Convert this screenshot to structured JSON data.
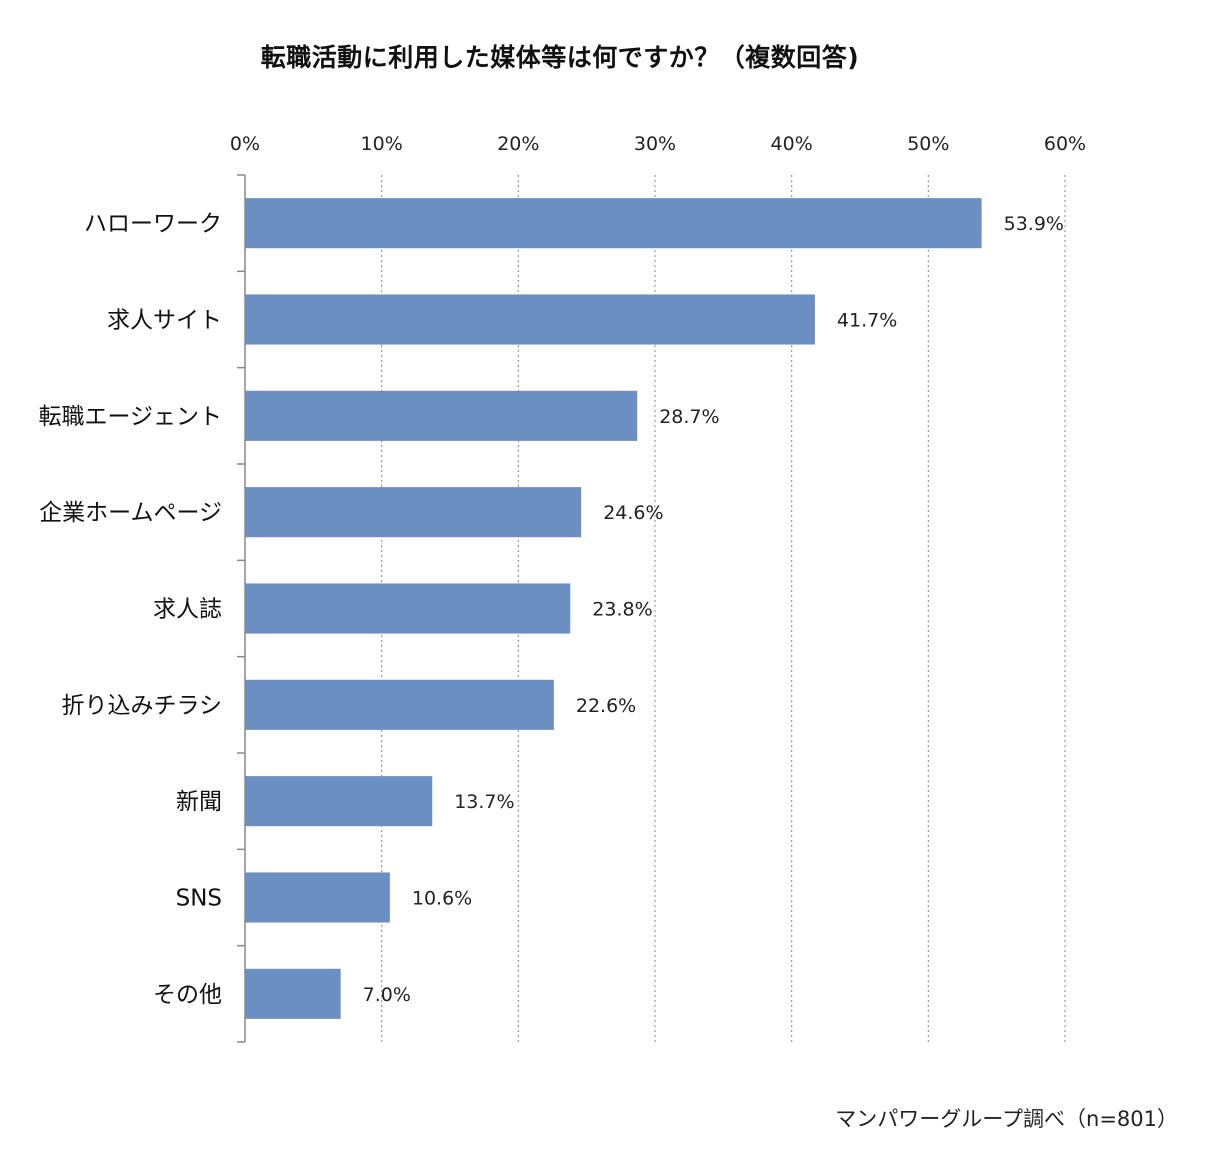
{
  "chart_data": {
    "type": "bar",
    "orientation": "horizontal",
    "title": "転職活動に利用した媒体等は何ですか？（複数回答)",
    "categories": [
      "ハローワーク",
      "求人サイト",
      "転職エージェント",
      "企業ホームページ",
      "求人誌",
      "折り込みチラシ",
      "新聞",
      "SNS",
      "その他"
    ],
    "series": [
      {
        "values": [
          53.9,
          41.7,
          28.7,
          24.6,
          23.8,
          22.6,
          13.7,
          10.6,
          7.0
        ]
      }
    ],
    "data_labels": [
      "53.9%",
      "41.7%",
      "28.7%",
      "24.6%",
      "23.8%",
      "22.6%",
      "13.7%",
      "10.6%",
      "7.0%"
    ],
    "x_ticks": [
      "0%",
      "10%",
      "20%",
      "30%",
      "40%",
      "50%",
      "60%"
    ],
    "xlim": [
      0,
      60
    ],
    "xlabel": "",
    "ylabel": "",
    "grid": "vertical dotted",
    "x_axis_position": "top",
    "legend": "none",
    "bar_color": "#6b8fc3",
    "source": "マンパワーグループ調べ（n=801）"
  }
}
